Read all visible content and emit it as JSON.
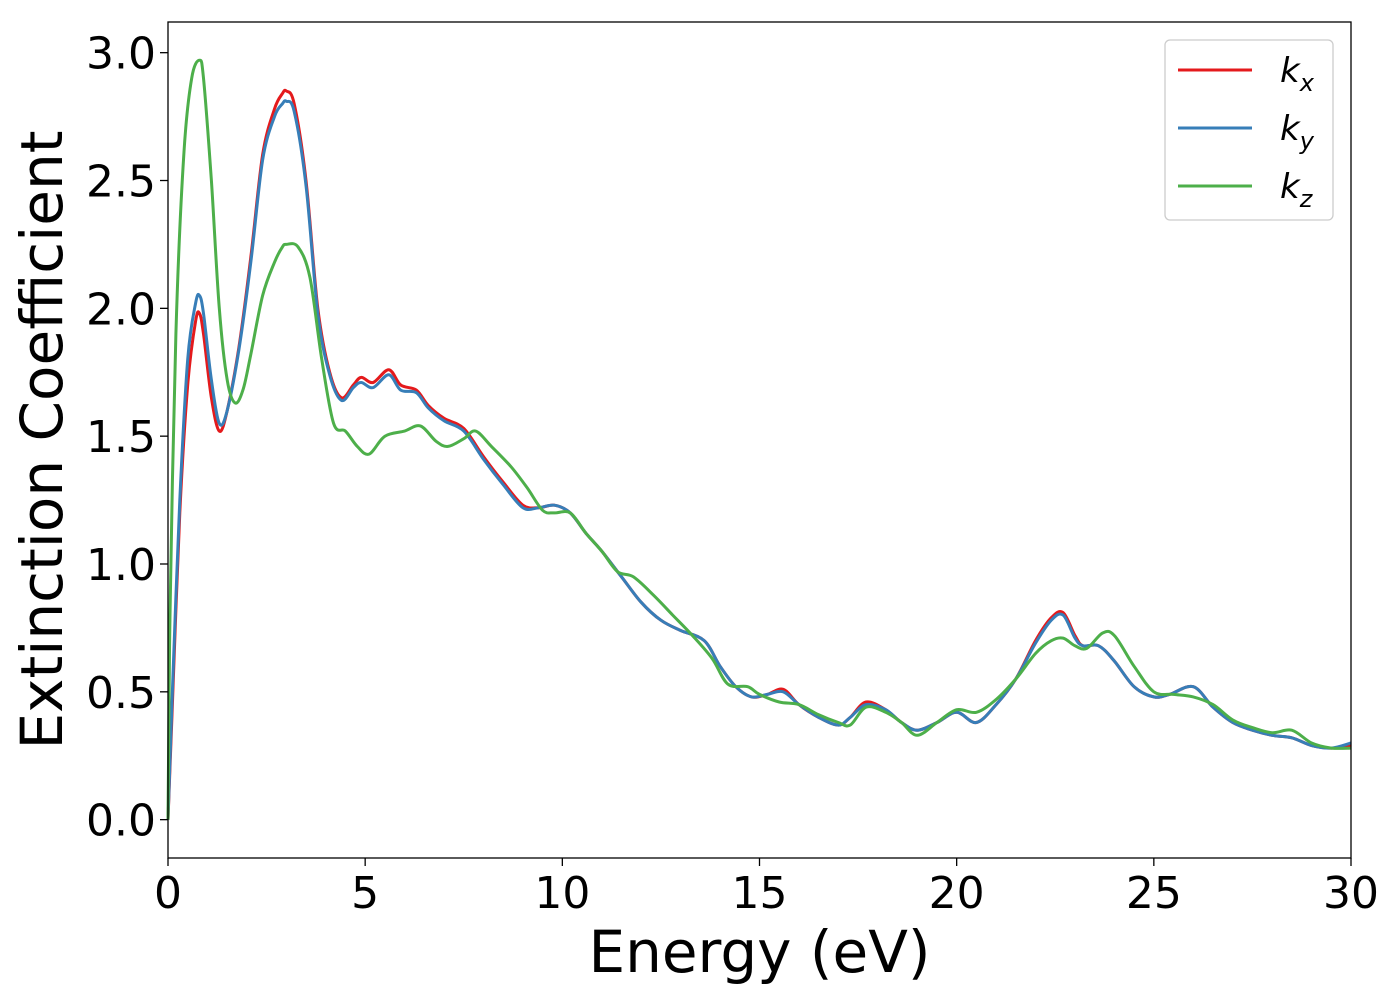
{
  "chart_data": {
    "type": "line",
    "xlabel": "Energy (eV)",
    "ylabel": "Extinction Coefficient",
    "xlim": [
      0,
      30
    ],
    "ylim": [
      -0.15,
      3.12
    ],
    "xticks": [
      0,
      5,
      10,
      15,
      20,
      25,
      30
    ],
    "xtick_labels": [
      "0",
      "5",
      "10",
      "15",
      "20",
      "25",
      "30"
    ],
    "yticks": [
      0.0,
      0.5,
      1.0,
      1.5,
      2.0,
      2.5,
      3.0
    ],
    "ytick_labels": [
      "0.0",
      "0.5",
      "1.0",
      "1.5",
      "2.0",
      "2.5",
      "3.0"
    ],
    "grid": false,
    "legend_position": "top-right",
    "series": [
      {
        "name": "k",
        "subscript": "x",
        "color": "#e41a1c",
        "points": [
          [
            0,
            0.0
          ],
          [
            0.1,
            0.4
          ],
          [
            0.3,
            1.2
          ],
          [
            0.5,
            1.7
          ],
          [
            0.7,
            1.95
          ],
          [
            0.8,
            1.98
          ],
          [
            0.9,
            1.9
          ],
          [
            1.1,
            1.65
          ],
          [
            1.3,
            1.52
          ],
          [
            1.5,
            1.6
          ],
          [
            1.8,
            1.85
          ],
          [
            2.1,
            2.2
          ],
          [
            2.4,
            2.6
          ],
          [
            2.7,
            2.78
          ],
          [
            2.9,
            2.84
          ],
          [
            3.0,
            2.85
          ],
          [
            3.2,
            2.8
          ],
          [
            3.5,
            2.5
          ],
          [
            3.8,
            2.0
          ],
          [
            4.1,
            1.75
          ],
          [
            4.4,
            1.65
          ],
          [
            4.7,
            1.7
          ],
          [
            4.9,
            1.73
          ],
          [
            5.2,
            1.71
          ],
          [
            5.6,
            1.76
          ],
          [
            5.9,
            1.7
          ],
          [
            6.3,
            1.68
          ],
          [
            6.6,
            1.62
          ],
          [
            7.0,
            1.57
          ],
          [
            7.5,
            1.53
          ],
          [
            8.0,
            1.42
          ],
          [
            8.5,
            1.32
          ],
          [
            9.0,
            1.23
          ],
          [
            9.4,
            1.22
          ],
          [
            9.8,
            1.23
          ],
          [
            10.2,
            1.2
          ],
          [
            10.6,
            1.12
          ],
          [
            11.0,
            1.05
          ],
          [
            11.5,
            0.95
          ],
          [
            12.0,
            0.85
          ],
          [
            12.5,
            0.78
          ],
          [
            13.0,
            0.74
          ],
          [
            13.6,
            0.7
          ],
          [
            14.0,
            0.6
          ],
          [
            14.4,
            0.52
          ],
          [
            14.8,
            0.48
          ],
          [
            15.2,
            0.49
          ],
          [
            15.6,
            0.51
          ],
          [
            16.0,
            0.45
          ],
          [
            16.5,
            0.4
          ],
          [
            17.0,
            0.37
          ],
          [
            17.3,
            0.4
          ],
          [
            17.7,
            0.46
          ],
          [
            18.2,
            0.43
          ],
          [
            18.6,
            0.38
          ],
          [
            19.0,
            0.35
          ],
          [
            19.5,
            0.38
          ],
          [
            20.0,
            0.42
          ],
          [
            20.5,
            0.38
          ],
          [
            21.0,
            0.45
          ],
          [
            21.5,
            0.55
          ],
          [
            22.0,
            0.7
          ],
          [
            22.4,
            0.79
          ],
          [
            22.7,
            0.81
          ],
          [
            23.0,
            0.72
          ],
          [
            23.2,
            0.68
          ],
          [
            23.6,
            0.68
          ],
          [
            24.0,
            0.62
          ],
          [
            24.5,
            0.52
          ],
          [
            25.0,
            0.48
          ],
          [
            25.4,
            0.49
          ],
          [
            26.0,
            0.52
          ],
          [
            26.5,
            0.44
          ],
          [
            27.0,
            0.38
          ],
          [
            27.5,
            0.35
          ],
          [
            28.0,
            0.33
          ],
          [
            28.5,
            0.32
          ],
          [
            29.0,
            0.29
          ],
          [
            29.5,
            0.28
          ],
          [
            30.0,
            0.29
          ]
        ]
      },
      {
        "name": "k",
        "subscript": "y",
        "color": "#377eb8",
        "points": [
          [
            0,
            0.0
          ],
          [
            0.1,
            0.45
          ],
          [
            0.3,
            1.25
          ],
          [
            0.5,
            1.8
          ],
          [
            0.7,
            2.02
          ],
          [
            0.8,
            2.05
          ],
          [
            0.9,
            1.98
          ],
          [
            1.1,
            1.72
          ],
          [
            1.3,
            1.55
          ],
          [
            1.5,
            1.6
          ],
          [
            1.8,
            1.84
          ],
          [
            2.1,
            2.18
          ],
          [
            2.4,
            2.58
          ],
          [
            2.7,
            2.75
          ],
          [
            2.9,
            2.8
          ],
          [
            3.0,
            2.81
          ],
          [
            3.2,
            2.77
          ],
          [
            3.5,
            2.48
          ],
          [
            3.8,
            1.98
          ],
          [
            4.1,
            1.74
          ],
          [
            4.4,
            1.64
          ],
          [
            4.7,
            1.69
          ],
          [
            4.9,
            1.71
          ],
          [
            5.2,
            1.69
          ],
          [
            5.6,
            1.74
          ],
          [
            5.9,
            1.68
          ],
          [
            6.3,
            1.67
          ],
          [
            6.6,
            1.61
          ],
          [
            7.0,
            1.56
          ],
          [
            7.5,
            1.52
          ],
          [
            8.0,
            1.41
          ],
          [
            8.5,
            1.31
          ],
          [
            9.0,
            1.22
          ],
          [
            9.4,
            1.22
          ],
          [
            9.8,
            1.23
          ],
          [
            10.2,
            1.2
          ],
          [
            10.6,
            1.12
          ],
          [
            11.0,
            1.05
          ],
          [
            11.5,
            0.95
          ],
          [
            12.0,
            0.85
          ],
          [
            12.5,
            0.78
          ],
          [
            13.0,
            0.74
          ],
          [
            13.6,
            0.7
          ],
          [
            14.0,
            0.6
          ],
          [
            14.4,
            0.52
          ],
          [
            14.8,
            0.48
          ],
          [
            15.2,
            0.49
          ],
          [
            15.6,
            0.5
          ],
          [
            16.0,
            0.45
          ],
          [
            16.5,
            0.4
          ],
          [
            17.0,
            0.37
          ],
          [
            17.3,
            0.4
          ],
          [
            17.7,
            0.45
          ],
          [
            18.2,
            0.43
          ],
          [
            18.6,
            0.38
          ],
          [
            19.0,
            0.35
          ],
          [
            19.5,
            0.38
          ],
          [
            20.0,
            0.42
          ],
          [
            20.5,
            0.38
          ],
          [
            21.0,
            0.45
          ],
          [
            21.5,
            0.55
          ],
          [
            22.0,
            0.69
          ],
          [
            22.4,
            0.78
          ],
          [
            22.7,
            0.8
          ],
          [
            23.0,
            0.71
          ],
          [
            23.2,
            0.68
          ],
          [
            23.6,
            0.68
          ],
          [
            24.0,
            0.62
          ],
          [
            24.5,
            0.52
          ],
          [
            25.0,
            0.48
          ],
          [
            25.4,
            0.49
          ],
          [
            26.0,
            0.52
          ],
          [
            26.5,
            0.44
          ],
          [
            27.0,
            0.38
          ],
          [
            27.5,
            0.35
          ],
          [
            28.0,
            0.33
          ],
          [
            28.5,
            0.32
          ],
          [
            29.0,
            0.29
          ],
          [
            29.5,
            0.28
          ],
          [
            30.0,
            0.3
          ]
        ]
      },
      {
        "name": "k",
        "subscript": "z",
        "color": "#4daf4a",
        "points": [
          [
            0,
            0.0
          ],
          [
            0.05,
            0.8
          ],
          [
            0.2,
            1.9
          ],
          [
            0.4,
            2.6
          ],
          [
            0.6,
            2.9
          ],
          [
            0.8,
            2.97
          ],
          [
            0.9,
            2.9
          ],
          [
            1.1,
            2.5
          ],
          [
            1.3,
            2.0
          ],
          [
            1.5,
            1.72
          ],
          [
            1.7,
            1.63
          ],
          [
            1.9,
            1.68
          ],
          [
            2.1,
            1.82
          ],
          [
            2.4,
            2.05
          ],
          [
            2.7,
            2.18
          ],
          [
            2.9,
            2.24
          ],
          [
            3.0,
            2.25
          ],
          [
            3.3,
            2.24
          ],
          [
            3.6,
            2.12
          ],
          [
            3.9,
            1.8
          ],
          [
            4.2,
            1.55
          ],
          [
            4.5,
            1.52
          ],
          [
            4.8,
            1.46
          ],
          [
            5.1,
            1.43
          ],
          [
            5.5,
            1.5
          ],
          [
            6.0,
            1.52
          ],
          [
            6.4,
            1.54
          ],
          [
            6.8,
            1.48
          ],
          [
            7.1,
            1.46
          ],
          [
            7.5,
            1.49
          ],
          [
            7.8,
            1.52
          ],
          [
            8.2,
            1.46
          ],
          [
            8.7,
            1.38
          ],
          [
            9.1,
            1.3
          ],
          [
            9.5,
            1.21
          ],
          [
            9.8,
            1.2
          ],
          [
            10.2,
            1.2
          ],
          [
            10.6,
            1.12
          ],
          [
            11.0,
            1.05
          ],
          [
            11.4,
            0.97
          ],
          [
            11.8,
            0.95
          ],
          [
            12.3,
            0.88
          ],
          [
            12.8,
            0.8
          ],
          [
            13.3,
            0.72
          ],
          [
            13.8,
            0.63
          ],
          [
            14.2,
            0.53
          ],
          [
            14.7,
            0.52
          ],
          [
            15.0,
            0.49
          ],
          [
            15.5,
            0.46
          ],
          [
            16.0,
            0.45
          ],
          [
            16.5,
            0.41
          ],
          [
            17.0,
            0.38
          ],
          [
            17.3,
            0.37
          ],
          [
            17.7,
            0.44
          ],
          [
            18.2,
            0.42
          ],
          [
            18.6,
            0.38
          ],
          [
            19.0,
            0.33
          ],
          [
            19.5,
            0.38
          ],
          [
            20.0,
            0.43
          ],
          [
            20.5,
            0.42
          ],
          [
            21.0,
            0.47
          ],
          [
            21.5,
            0.55
          ],
          [
            22.0,
            0.65
          ],
          [
            22.4,
            0.7
          ],
          [
            22.7,
            0.71
          ],
          [
            23.0,
            0.68
          ],
          [
            23.3,
            0.67
          ],
          [
            23.7,
            0.73
          ],
          [
            24.0,
            0.72
          ],
          [
            24.5,
            0.6
          ],
          [
            25.0,
            0.5
          ],
          [
            25.5,
            0.49
          ],
          [
            26.0,
            0.48
          ],
          [
            26.5,
            0.45
          ],
          [
            27.0,
            0.39
          ],
          [
            27.5,
            0.36
          ],
          [
            28.0,
            0.34
          ],
          [
            28.5,
            0.35
          ],
          [
            29.0,
            0.3
          ],
          [
            29.5,
            0.28
          ],
          [
            30.0,
            0.28
          ]
        ]
      }
    ]
  }
}
